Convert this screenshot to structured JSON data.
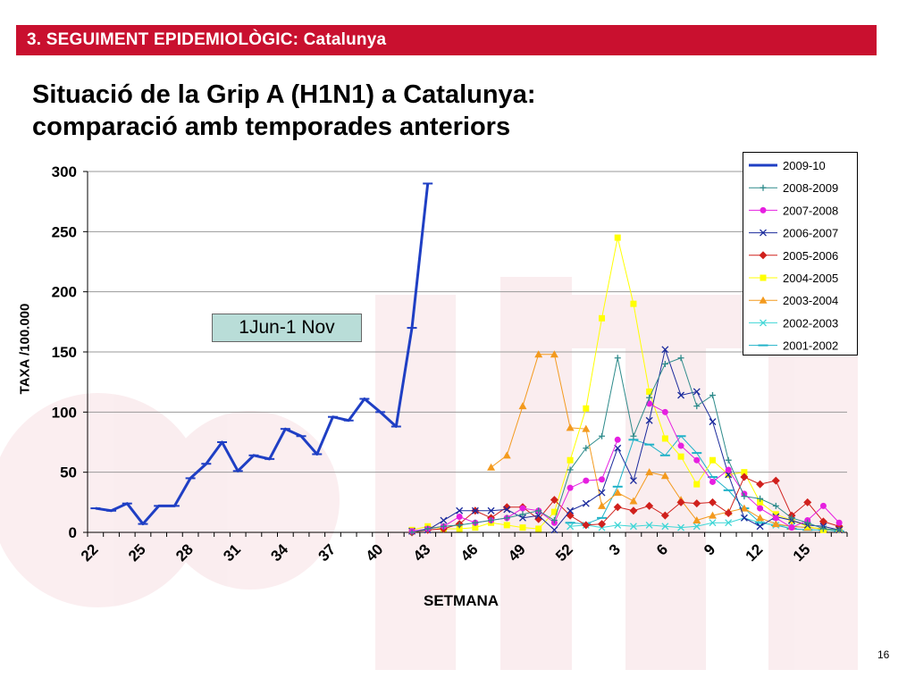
{
  "header": {
    "text": "3. SEGUIMENT EPIDEMIOLÒGIC: Catalunya"
  },
  "title": {
    "line1": "Situació de la Grip A (H1N1) a Catalunya:",
    "line2": "comparació amb temporades anteriors"
  },
  "page_number": "16",
  "colors": {
    "header_bg": "#c9102f",
    "annotation_bg": "#b9ddd8"
  },
  "chart_data": {
    "type": "line",
    "xlabel": "SETMANA",
    "ylabel": "TAXA /100.000",
    "ylim": [
      0,
      300
    ],
    "yticks": [
      "0",
      "50",
      "100",
      "150",
      "200",
      "250",
      "300"
    ],
    "x_tick_labels": [
      "22",
      "25",
      "28",
      "31",
      "34",
      "37",
      "40",
      "43",
      "46",
      "49",
      "52",
      "3",
      "6",
      "9",
      "12",
      "15"
    ],
    "week_sequence": [
      22,
      23,
      24,
      25,
      26,
      27,
      28,
      29,
      30,
      31,
      32,
      33,
      34,
      35,
      36,
      37,
      38,
      39,
      40,
      41,
      42,
      43,
      44,
      45,
      46,
      47,
      48,
      49,
      50,
      51,
      52,
      1,
      2,
      3,
      4,
      5,
      6,
      7,
      8,
      9,
      10,
      11,
      12,
      13,
      14,
      15,
      16,
      17
    ],
    "grid": "horizontal",
    "legend_position": "top-right",
    "annotation": "1Jun-1 Nov",
    "series": [
      {
        "name": "2009-10",
        "color": "#1f3fc4",
        "marker": "dash",
        "width": 3,
        "values": [
          20,
          18,
          24,
          7,
          22,
          22,
          45,
          57,
          75,
          51,
          64,
          61,
          86,
          80,
          65,
          96,
          93,
          111,
          100,
          88,
          170,
          290,
          null,
          null,
          null,
          null,
          null,
          null,
          null,
          null,
          null,
          null,
          null,
          null,
          null,
          null,
          null,
          null,
          null,
          null,
          null,
          null,
          null,
          null,
          null,
          null,
          null,
          null
        ]
      },
      {
        "name": "2008-2009",
        "color": "#2e8b8b",
        "marker": "plus",
        "width": 1,
        "values": [
          null,
          null,
          null,
          null,
          null,
          null,
          null,
          null,
          null,
          null,
          null,
          null,
          null,
          null,
          null,
          null,
          null,
          null,
          null,
          null,
          0,
          3,
          5,
          6,
          8,
          10,
          12,
          15,
          18,
          10,
          52,
          70,
          80,
          145,
          80,
          112,
          140,
          145,
          105,
          114,
          60,
          30,
          28,
          22,
          12,
          8,
          3,
          2
        ]
      },
      {
        "name": "2007-2008",
        "color": "#e61fe0",
        "marker": "circle",
        "width": 1,
        "values": [
          null,
          null,
          null,
          null,
          null,
          null,
          null,
          null,
          null,
          null,
          null,
          null,
          null,
          null,
          null,
          null,
          null,
          null,
          null,
          null,
          1,
          3,
          5,
          13,
          8,
          10,
          12,
          20,
          18,
          8,
          37,
          43,
          44,
          77,
          null,
          107,
          100,
          72,
          60,
          42,
          52,
          32,
          20,
          12,
          4,
          10,
          22,
          8
        ]
      },
      {
        "name": "2006-2007",
        "color": "#1a2a9c",
        "marker": "x",
        "width": 1,
        "values": [
          null,
          null,
          null,
          null,
          null,
          null,
          null,
          null,
          null,
          null,
          null,
          null,
          null,
          null,
          null,
          null,
          null,
          null,
          null,
          null,
          1,
          2,
          10,
          18,
          18,
          18,
          19,
          12,
          14,
          2,
          18,
          24,
          33,
          70,
          43,
          93,
          152,
          114,
          117,
          92,
          48,
          12,
          5,
          13,
          10,
          6,
          5,
          2
        ]
      },
      {
        "name": "2005-2006",
        "color": "#d0201c",
        "marker": "diamond",
        "width": 1,
        "values": [
          null,
          null,
          null,
          null,
          null,
          null,
          null,
          null,
          null,
          null,
          null,
          null,
          null,
          null,
          null,
          null,
          null,
          null,
          null,
          null,
          0,
          2,
          3,
          7,
          18,
          12,
          21,
          21,
          11,
          27,
          14,
          6,
          7,
          21,
          18,
          22,
          14,
          25,
          24,
          25,
          16,
          46,
          40,
          43,
          14,
          25,
          9,
          5
        ]
      },
      {
        "name": "2004-2005",
        "color": "#ffff00",
        "marker": "square",
        "width": 1,
        "values": [
          null,
          null,
          null,
          null,
          null,
          null,
          null,
          null,
          null,
          null,
          null,
          null,
          null,
          null,
          null,
          null,
          null,
          null,
          null,
          null,
          2,
          5,
          3,
          3,
          4,
          8,
          6,
          4,
          3,
          17,
          60,
          103,
          178,
          245,
          190,
          117,
          78,
          63,
          40,
          60,
          48,
          50,
          25,
          15,
          10,
          5,
          2,
          3
        ]
      },
      {
        "name": "2003-2004",
        "color": "#f39a1e",
        "marker": "triangle",
        "width": 1,
        "values": [
          null,
          null,
          null,
          null,
          null,
          null,
          null,
          null,
          null,
          null,
          null,
          null,
          null,
          null,
          null,
          null,
          null,
          null,
          null,
          null,
          null,
          null,
          null,
          null,
          null,
          54,
          64,
          105,
          148,
          148,
          87,
          86,
          22,
          33,
          26,
          50,
          47,
          27,
          10,
          14,
          17,
          20,
          12,
          7,
          5,
          4,
          3,
          2
        ]
      },
      {
        "name": "2002-2003",
        "color": "#3fd6d6",
        "marker": "x",
        "width": 1,
        "values": [
          null,
          null,
          null,
          null,
          null,
          null,
          null,
          null,
          null,
          null,
          null,
          null,
          null,
          null,
          null,
          null,
          null,
          null,
          null,
          null,
          null,
          null,
          null,
          null,
          null,
          null,
          null,
          null,
          null,
          null,
          5,
          6,
          4,
          6,
          5,
          6,
          5,
          4,
          5,
          8,
          8,
          12,
          8,
          6,
          5,
          4,
          3,
          2
        ]
      },
      {
        "name": "2001-2002",
        "color": "#20b2c8",
        "marker": "dash",
        "width": 1,
        "values": [
          null,
          null,
          null,
          null,
          null,
          null,
          null,
          null,
          null,
          null,
          null,
          null,
          null,
          null,
          null,
          null,
          null,
          null,
          null,
          null,
          null,
          null,
          null,
          null,
          null,
          null,
          null,
          null,
          null,
          null,
          8,
          7,
          12,
          38,
          77,
          73,
          64,
          80,
          66,
          46,
          35,
          20,
          8,
          6,
          3,
          2,
          2,
          1
        ]
      }
    ]
  }
}
